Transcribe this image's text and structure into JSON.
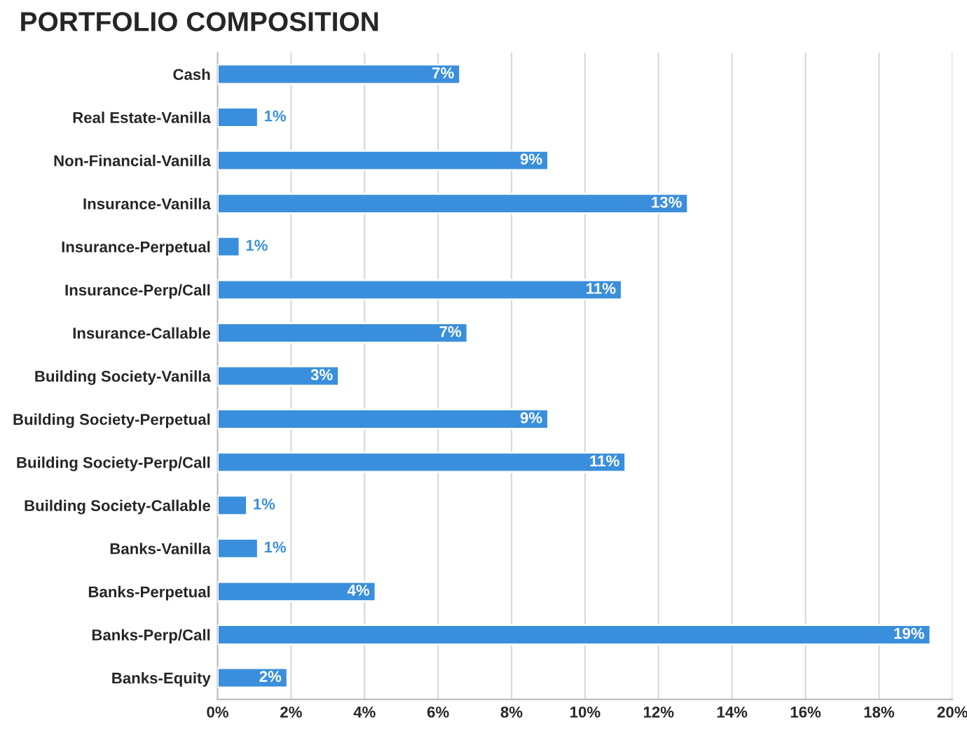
{
  "chart_data": {
    "type": "bar",
    "orientation": "horizontal",
    "title": "PORTFOLIO COMPOSITION",
    "categories": [
      "Cash",
      "Real Estate-Vanilla",
      "Non-Financial-Vanilla",
      "Insurance-Vanilla",
      "Insurance-Perpetual",
      "Insurance-Perp/Call",
      "Insurance-Callable",
      "Building Society-Vanilla",
      "Building Society-Perpetual",
      "Building Society-Perp/Call",
      "Building Society-Callable",
      "Banks-Vanilla",
      "Banks-Perpetual",
      "Banks-Perp/Call",
      "Banks-Equity"
    ],
    "values": [
      6.6,
      1.1,
      9.0,
      12.8,
      0.6,
      11.0,
      6.8,
      3.3,
      9.0,
      11.1,
      0.8,
      1.1,
      4.3,
      19.4,
      1.9
    ],
    "value_labels": [
      "7%",
      "1%",
      "9%",
      "13%",
      "1%",
      "11%",
      "7%",
      "3%",
      "9%",
      "11%",
      "1%",
      "1%",
      "4%",
      "19%",
      "2%"
    ],
    "color": "#3a8fdc",
    "xlim": [
      0,
      20
    ],
    "xticks": [
      {
        "value": 0,
        "label": "0%"
      },
      {
        "value": 2,
        "label": "2%"
      },
      {
        "value": 4,
        "label": "4%"
      },
      {
        "value": 6,
        "label": "6%"
      },
      {
        "value": 8,
        "label": "8%"
      },
      {
        "value": 10,
        "label": "10%"
      },
      {
        "value": 12,
        "label": "12%"
      },
      {
        "value": 14,
        "label": "14%"
      },
      {
        "value": 16,
        "label": "16%"
      },
      {
        "value": 18,
        "label": "18%"
      },
      {
        "value": 20,
        "label": "20%"
      }
    ],
    "grid": "x",
    "legend": false
  }
}
